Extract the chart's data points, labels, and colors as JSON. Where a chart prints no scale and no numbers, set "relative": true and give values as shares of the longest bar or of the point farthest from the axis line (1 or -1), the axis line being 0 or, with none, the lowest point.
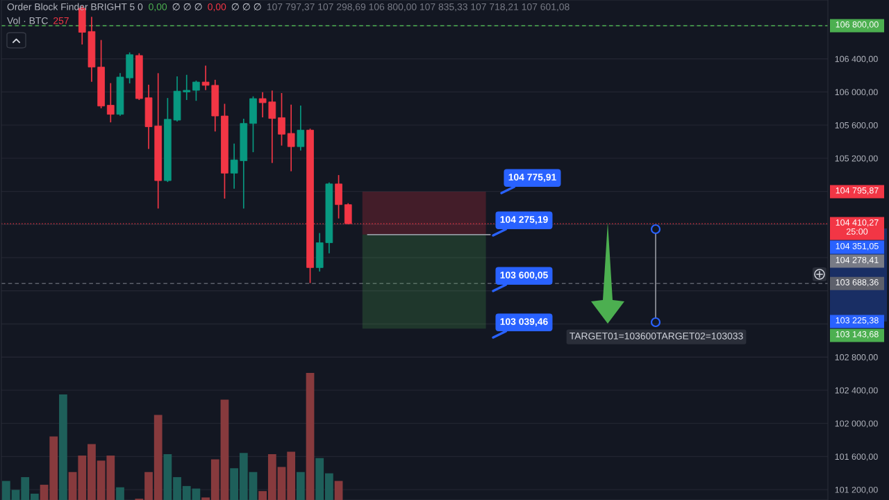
{
  "chart_data": [
    {
      "type": "candlestick",
      "title": "Order Block Finder BRIGHT 5 0",
      "annotations": [
        "0,00",
        "∅ ∅ ∅",
        "0,00",
        "∅ ∅ ∅",
        "107 797,37 107 298,69 106 800,00 107 835,33 107 718,21 107 601,08",
        "104 775,91",
        "104 275,19",
        "103 600,05",
        "103 039,46",
        "TARGET01=103600TARGET02=103033",
        "104 795,87",
        "104 351,05",
        "104 278,41",
        "103 225,38",
        "103 143,68"
      ],
      "categories": [
        null,
        null,
        null,
        null,
        null,
        null,
        null,
        null,
        null,
        null,
        null,
        null,
        null,
        null,
        null,
        null,
        null,
        null,
        null,
        null,
        null,
        null,
        null,
        null,
        null,
        null,
        null,
        null,
        null,
        null,
        null,
        null,
        null,
        null,
        null,
        null,
        null,
        null,
        null,
        null,
        null,
        null,
        null,
        null,
        null,
        null,
        null,
        null,
        null,
        null,
        null,
        null,
        null,
        null,
        null,
        null,
        null,
        null,
        null,
        null,
        null,
        null,
        null,
        null,
        null,
        null,
        null,
        null,
        null,
        null,
        null,
        null,
        null,
        null,
        null,
        null,
        null,
        null,
        null,
        null,
        null,
        null,
        null,
        null,
        null,
        null,
        null
      ],
      "ohlc": [
        null,
        null,
        null,
        null,
        null,
        null,
        null,
        null,
        [
          107010,
          107030,
          106580,
          106720
        ],
        [
          106730,
          106900,
          106130,
          106300
        ],
        [
          106300,
          106620,
          105810,
          105830
        ],
        [
          105840,
          106100,
          105640,
          105730
        ],
        [
          105730,
          106220,
          105720,
          106180
        ],
        [
          106170,
          106470,
          106110,
          106450
        ],
        [
          106440,
          106460,
          105910,
          105920
        ],
        [
          105930,
          106080,
          105320,
          105580
        ],
        [
          105590,
          106220,
          104600,
          104930
        ],
        [
          104930,
          105920,
          104920,
          105670
        ],
        [
          105660,
          106180,
          105650,
          106010
        ],
        [
          106000,
          106200,
          105910,
          106020
        ],
        [
          106020,
          106130,
          105900,
          106120
        ],
        [
          106120,
          106310,
          106030,
          106080
        ],
        [
          106080,
          106140,
          105530,
          105710
        ],
        [
          105710,
          105850,
          104720,
          105020
        ],
        [
          105020,
          105370,
          104840,
          105180
        ],
        [
          105170,
          105670,
          104600,
          105620
        ],
        [
          105620,
          105940,
          105280,
          105920
        ],
        [
          105920,
          105990,
          105700,
          105870
        ],
        [
          105880,
          106010,
          105150,
          105680
        ],
        [
          105690,
          105980,
          105360,
          105490
        ],
        [
          105500,
          105840,
          105050,
          105340
        ],
        [
          105340,
          105830,
          105300,
          105540
        ],
        [
          105540,
          105550,
          103700,
          103880
        ],
        [
          103880,
          104290,
          103840,
          104180
        ],
        [
          104180,
          104900,
          104060,
          104890
        ],
        [
          104890,
          104990,
          104480,
          104640
        ],
        [
          104640,
          104650,
          104410.27,
          104410.27
        ],
        null,
        null,
        null,
        null,
        null,
        null,
        null,
        null,
        null,
        null,
        null,
        null,
        null,
        null,
        null,
        null,
        null,
        null,
        null,
        null,
        null,
        null,
        null,
        null,
        null,
        null,
        null,
        null,
        null,
        null,
        null,
        null,
        null,
        null,
        null,
        null,
        null,
        null,
        null,
        null,
        null,
        null,
        null,
        null,
        null,
        null,
        null,
        null,
        null,
        null
      ],
      "colors": [
        null,
        null,
        null,
        null,
        null,
        null,
        null,
        null,
        "#f23645",
        "#f23645",
        "#f23645",
        "#f23645",
        "#089981",
        "#089981",
        "#f23645",
        "#f23645",
        "#f23645",
        "#089981",
        "#089981",
        "#089981",
        "#089981",
        "#f23645",
        "#f23645",
        "#f23645",
        "#089981",
        "#089981",
        "#089981",
        "#f23645",
        "#f23645",
        "#f23645",
        "#f23645",
        "#089981",
        "#f23645",
        "#089981",
        "#089981",
        "#f23645",
        "#f23645",
        null,
        null,
        null,
        null,
        null,
        null,
        null,
        null,
        null,
        null,
        null,
        null,
        null,
        null,
        null,
        null,
        null,
        null,
        null,
        null,
        null,
        null,
        null,
        null,
        null,
        null,
        null,
        null,
        null,
        null,
        null,
        null,
        null,
        null,
        null,
        null,
        null,
        null,
        null,
        null,
        null,
        null,
        null,
        null,
        null,
        null,
        null,
        null,
        null,
        null
      ],
      "series": [
        {
          "type": "line",
          "color": "#9598a1",
          "values": [
            null,
            null,
            null,
            null,
            null,
            null,
            null,
            null,
            null,
            null,
            null,
            null,
            null,
            null,
            null,
            null,
            null,
            null,
            null,
            null,
            null,
            null,
            null,
            null,
            null,
            null,
            null,
            null,
            null,
            null,
            null,
            null,
            null,
            null,
            null,
            null,
            null,
            null,
            104278.41,
            104278.41,
            104278.41,
            104278.41,
            104278.41,
            104278.41,
            104278.41,
            104278.41,
            104278.41,
            104278.41,
            104278.41,
            104278.41,
            104278.41,
            104278.41,
            null,
            null,
            null,
            null,
            null,
            null,
            null,
            null,
            null,
            null,
            null,
            null,
            null,
            null,
            null,
            null,
            null,
            null,
            null,
            null,
            null,
            null,
            null,
            null,
            null,
            null,
            null,
            null,
            null,
            null,
            null,
            null,
            null,
            null,
            null
          ]
        }
      ],
      "ylim": [
        101075,
        107110
      ],
      "yticks": [
        {
          "value": 101200,
          "label": "101 200,00"
        },
        {
          "value": 101600,
          "label": "101 600,00"
        },
        {
          "value": 102000,
          "label": "102 000,00"
        },
        {
          "value": 102400,
          "label": "102 400,00"
        },
        {
          "value": 102800,
          "label": "102 800,00"
        },
        {
          "value": 103200,
          "label": null
        },
        {
          "value": 103600,
          "label": null
        },
        {
          "value": 104000,
          "label": null
        },
        {
          "value": 104400,
          "label": null
        },
        {
          "value": 104800,
          "label": null
        },
        {
          "value": 105200,
          "label": "105 200,00"
        },
        {
          "value": 105600,
          "label": "105 600,00"
        },
        {
          "value": 106000,
          "label": "106 000,00"
        },
        {
          "value": 106400,
          "label": "106 400,00"
        },
        {
          "value": 106800,
          "label": null
        }
      ],
      "grid": "y",
      "ref_lines": [
        {
          "axis": "y",
          "value": 106800,
          "label": "106 800,00",
          "color": "#4caf50",
          "line_style": "dashed"
        },
        {
          "axis": "y",
          "value": 104410.27,
          "label": "104 410,27\n25:00",
          "color": "#f23645",
          "line_style": "dotted"
        },
        {
          "axis": "y",
          "value": 103688.36,
          "label": "103 688,36",
          "color": "#5d606b",
          "line_style": "dashed"
        }
      ],
      "bands": [
        {
          "axis": "y",
          "from": 104278.41,
          "to": 104795.87,
          "color": "#f23645"
        },
        {
          "axis": "y",
          "from": 104278.41,
          "to": 103143.68,
          "color": "#4caf50"
        }
      ]
    },
    {
      "type": "bar",
      "title": "Vol · BTC",
      "annotations": [
        "257"
      ],
      "relative": true,
      "categories": [
        null,
        null,
        null,
        null,
        null,
        null,
        null,
        null,
        null,
        null,
        null,
        null,
        null,
        null,
        null,
        null,
        null,
        null,
        null,
        null,
        null,
        null,
        null,
        null,
        null,
        null,
        null,
        null,
        null,
        null,
        null,
        null,
        null,
        null,
        null,
        null,
        null,
        null,
        null,
        null,
        null,
        null,
        null,
        null,
        null,
        null,
        null,
        null,
        null,
        null,
        null,
        null,
        null,
        null,
        null,
        null,
        null,
        null,
        null,
        null,
        null,
        null,
        null,
        null,
        null,
        null,
        null,
        null,
        null,
        null,
        null,
        null,
        null,
        null,
        null,
        null,
        null,
        null,
        null,
        null,
        null,
        null,
        null,
        null,
        null,
        null,
        null
      ],
      "values": [
        0.15,
        0.08,
        0.18,
        0.05,
        0.12,
        0.5,
        0.83,
        0.22,
        0.35,
        0.44,
        0.31,
        0.35,
        0.1,
        null,
        0.01,
        0.22,
        0.67,
        0.36,
        0.18,
        0.11,
        0.09,
        0.02,
        0.32,
        0.79,
        0.25,
        0.37,
        0.22,
        0.07,
        0.36,
        0.26,
        0.38,
        0.22,
        1,
        0.33,
        0.21,
        0.15,
        null,
        null,
        null,
        null,
        null,
        null,
        null,
        null,
        null,
        null,
        null,
        null,
        null,
        null,
        null,
        null,
        null,
        null,
        null,
        null,
        null,
        null,
        null,
        null,
        null,
        null,
        null,
        null,
        null,
        null,
        null,
        null,
        null,
        null,
        null,
        null,
        null,
        null,
        null,
        null,
        null,
        null,
        null,
        null,
        null,
        null,
        null,
        null,
        null,
        null,
        null
      ],
      "colors": [
        "#1e5f5a",
        "#1e5f5a",
        "#1e5f5a",
        "#1e5f5a",
        "#873a3d",
        "#873a3d",
        "#1e5f5a",
        "#873a3d",
        "#873a3d",
        "#873a3d",
        "#873a3d",
        "#873a3d",
        "#1e5f5a",
        null,
        "#873a3d",
        "#873a3d",
        "#873a3d",
        "#1e5f5a",
        "#1e5f5a",
        "#1e5f5a",
        "#1e5f5a",
        "#873a3d",
        "#873a3d",
        "#873a3d",
        "#1e5f5a",
        "#1e5f5a",
        "#1e5f5a",
        "#873a3d",
        "#873a3d",
        "#873a3d",
        "#873a3d",
        "#1e5f5a",
        "#873a3d",
        "#1e5f5a",
        "#1e5f5a",
        "#873a3d",
        null,
        null,
        null,
        null,
        null,
        null,
        null,
        null,
        null,
        null,
        null,
        null,
        null,
        null,
        null,
        null,
        null,
        null,
        null,
        null,
        null,
        null,
        null,
        null,
        null,
        null,
        null,
        null,
        null,
        null,
        null,
        null,
        null,
        null,
        null,
        null,
        null,
        null,
        null,
        null,
        null,
        null,
        null,
        null,
        null,
        null,
        null,
        null,
        null,
        null,
        null
      ]
    }
  ]
}
